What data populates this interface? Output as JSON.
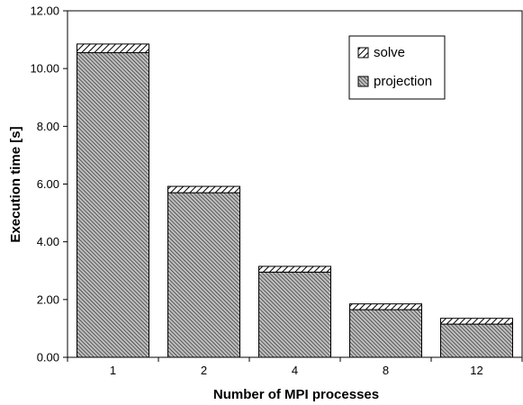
{
  "chart_data": {
    "type": "bar",
    "stacked": true,
    "categories": [
      "1",
      "2",
      "4",
      "8",
      "12"
    ],
    "series": [
      {
        "name": "projection",
        "values": [
          10.55,
          5.7,
          2.95,
          1.65,
          1.15
        ]
      },
      {
        "name": "solve",
        "values": [
          0.3,
          0.22,
          0.2,
          0.2,
          0.2
        ]
      }
    ],
    "xlabel": "Number of MPI processes",
    "ylabel": "Execution time [s]",
    "ylim": [
      0,
      12
    ],
    "yticks": [
      "0.00",
      "2.00",
      "4.00",
      "6.00",
      "8.00",
      "10.00",
      "12.00"
    ],
    "grid": false,
    "legend": {
      "placement": "top-right",
      "entries": [
        "solve",
        "projection"
      ]
    },
    "colors": {
      "bar_fill": "#bfbfbf",
      "hatch": "#000000",
      "axis": "#000000",
      "background": "#ffffff"
    }
  }
}
